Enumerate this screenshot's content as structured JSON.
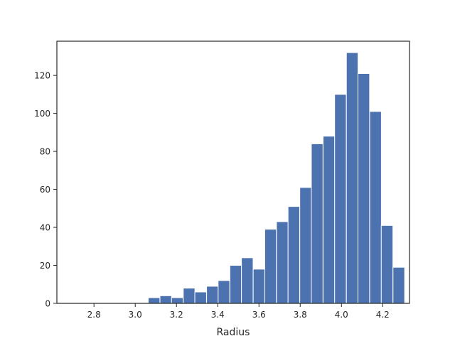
{
  "chart_data": {
    "type": "bar",
    "title": "",
    "xlabel": "Radius",
    "ylabel": "",
    "xlim": [
      2.62,
      4.33
    ],
    "ylim": [
      0,
      138
    ],
    "grid": false,
    "bar_color": "#4C72B0",
    "bin_width": 0.0565,
    "bins": [
      {
        "x0": 3.063,
        "count": 3
      },
      {
        "x0": 3.12,
        "count": 4
      },
      {
        "x0": 3.176,
        "count": 3
      },
      {
        "x0": 3.233,
        "count": 8
      },
      {
        "x0": 3.289,
        "count": 6
      },
      {
        "x0": 3.346,
        "count": 9
      },
      {
        "x0": 3.402,
        "count": 12
      },
      {
        "x0": 3.459,
        "count": 20
      },
      {
        "x0": 3.515,
        "count": 24
      },
      {
        "x0": 3.572,
        "count": 18
      },
      {
        "x0": 3.628,
        "count": 39
      },
      {
        "x0": 3.685,
        "count": 43
      },
      {
        "x0": 3.741,
        "count": 51
      },
      {
        "x0": 3.798,
        "count": 61
      },
      {
        "x0": 3.854,
        "count": 84
      },
      {
        "x0": 3.911,
        "count": 88
      },
      {
        "x0": 3.967,
        "count": 110
      },
      {
        "x0": 4.024,
        "count": 132
      },
      {
        "x0": 4.08,
        "count": 121
      },
      {
        "x0": 4.137,
        "count": 101
      },
      {
        "x0": 4.193,
        "count": 41
      },
      {
        "x0": 4.25,
        "count": 19
      }
    ],
    "x_ticks": [
      {
        "value": 2.8,
        "label": "2.8"
      },
      {
        "value": 3.0,
        "label": "3.0"
      },
      {
        "value": 3.2,
        "label": "3.2"
      },
      {
        "value": 3.4,
        "label": "3.4"
      },
      {
        "value": 3.6,
        "label": "3.6"
      },
      {
        "value": 3.8,
        "label": "3.8"
      },
      {
        "value": 4.0,
        "label": "4.0"
      },
      {
        "value": 4.2,
        "label": "4.2"
      }
    ],
    "y_ticks": [
      {
        "value": 0,
        "label": "0"
      },
      {
        "value": 20,
        "label": "20"
      },
      {
        "value": 40,
        "label": "40"
      },
      {
        "value": 60,
        "label": "60"
      },
      {
        "value": 80,
        "label": "80"
      },
      {
        "value": 100,
        "label": "100"
      },
      {
        "value": 120,
        "label": "120"
      }
    ]
  }
}
